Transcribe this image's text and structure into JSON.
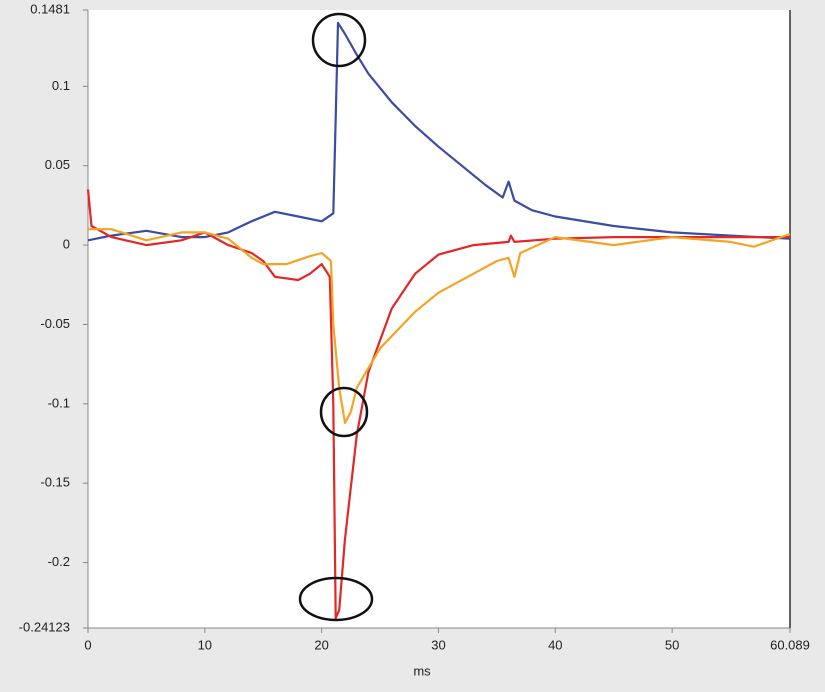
{
  "chart_data": {
    "type": "line",
    "x_label": "ms",
    "xlim": [
      0,
      60.089
    ],
    "xticks": [
      0,
      10,
      20,
      30,
      40,
      50,
      60.089
    ],
    "ylim": [
      -0.24123,
      0.1481
    ],
    "yticks": [
      0.1481,
      0.1,
      0.05,
      0,
      -0.05,
      -0.1,
      -0.15,
      -0.2,
      -0.24123
    ],
    "grid": false,
    "series": [
      {
        "color": "#3b4ca3",
        "x": [
          0,
          2,
          5,
          8,
          10,
          12,
          14,
          16,
          18,
          20,
          21,
          21.2,
          21.4,
          22,
          23,
          24,
          26,
          28,
          30,
          32,
          34,
          35.5,
          36,
          36.5,
          38,
          40,
          45,
          50,
          55,
          60.089
        ],
        "values": [
          0.003,
          0.006,
          0.009,
          0.005,
          0.005,
          0.008,
          0.015,
          0.021,
          0.018,
          0.015,
          0.02,
          0.08,
          0.14,
          0.133,
          0.12,
          0.108,
          0.09,
          0.075,
          0.062,
          0.05,
          0.038,
          0.03,
          0.04,
          0.028,
          0.022,
          0.018,
          0.012,
          0.008,
          0.006,
          0.004
        ]
      },
      {
        "color": "#e32626",
        "x": [
          0,
          0.3,
          2,
          5,
          8,
          10,
          12,
          14,
          15,
          16,
          18,
          19,
          20,
          20.7,
          21,
          21.2,
          21.5,
          22,
          23,
          24,
          26,
          28,
          30,
          33,
          36,
          36.2,
          36.5,
          40,
          45,
          50,
          55,
          60.089
        ],
        "values": [
          0.035,
          0.012,
          0.005,
          0.0,
          0.003,
          0.008,
          0.0,
          -0.005,
          -0.01,
          -0.02,
          -0.022,
          -0.018,
          -0.012,
          -0.02,
          -0.1,
          -0.235,
          -0.23,
          -0.185,
          -0.12,
          -0.08,
          -0.04,
          -0.018,
          -0.006,
          0.0,
          0.002,
          0.006,
          0.002,
          0.004,
          0.005,
          0.005,
          0.005,
          0.005
        ]
      },
      {
        "color": "#f4a423",
        "x": [
          0,
          2,
          5,
          8,
          10,
          12,
          14,
          15,
          17,
          19,
          20,
          20.8,
          21,
          21.5,
          22,
          22.5,
          23,
          25,
          28,
          30,
          33,
          35,
          36,
          36.5,
          37,
          40,
          45,
          50,
          55,
          57,
          60.089
        ],
        "values": [
          0.01,
          0.01,
          0.003,
          0.008,
          0.008,
          0.004,
          -0.008,
          -0.012,
          -0.012,
          -0.007,
          -0.005,
          -0.01,
          -0.05,
          -0.09,
          -0.112,
          -0.105,
          -0.09,
          -0.065,
          -0.042,
          -0.03,
          -0.018,
          -0.01,
          -0.008,
          -0.02,
          -0.005,
          0.005,
          0.0,
          0.005,
          0.002,
          -0.001,
          0.007
        ]
      }
    ]
  }
}
